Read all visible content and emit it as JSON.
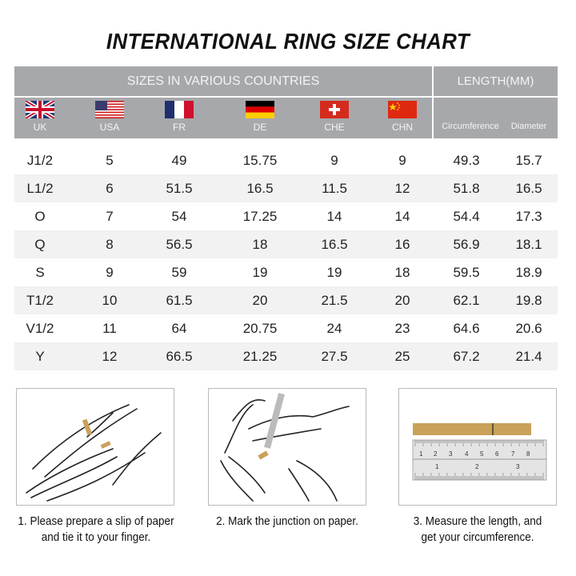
{
  "title": "INTERNATIONAL RING SIZE CHART",
  "header": {
    "sizes_label": "SIZES IN VARIOUS COUNTRIES",
    "length_label": "LENGTH(MM)",
    "countries": [
      {
        "code": "UK",
        "flag": "uk-flag"
      },
      {
        "code": "USA",
        "flag": "usa-flag"
      },
      {
        "code": "FR",
        "flag": "france-flag"
      },
      {
        "code": "DE",
        "flag": "germany-flag"
      },
      {
        "code": "CHE",
        "flag": "switzerland-flag"
      },
      {
        "code": "CHN",
        "flag": "china-flag"
      }
    ],
    "length_columns": [
      "Circumference",
      "Diameter"
    ]
  },
  "rows": [
    [
      "J1/2",
      "5",
      "49",
      "15.75",
      "9",
      "9",
      "49.3",
      "15.7"
    ],
    [
      "L1/2",
      "6",
      "51.5",
      "16.5",
      "11.5",
      "12",
      "51.8",
      "16.5"
    ],
    [
      "O",
      "7",
      "54",
      "17.25",
      "14",
      "14",
      "54.4",
      "17.3"
    ],
    [
      "Q",
      "8",
      "56.5",
      "18",
      "16.5",
      "16",
      "56.9",
      "18.1"
    ],
    [
      "S",
      "9",
      "59",
      "19",
      "19",
      "18",
      "59.5",
      "18.9"
    ],
    [
      "T1/2",
      "10",
      "61.5",
      "20",
      "21.5",
      "20",
      "62.1",
      "19.8"
    ],
    [
      "V1/2",
      "11",
      "64",
      "20.75",
      "24",
      "23",
      "64.6",
      "20.6"
    ],
    [
      "Y",
      "12",
      "66.5",
      "21.25",
      "27.5",
      "25",
      "67.2",
      "21.4"
    ]
  ],
  "steps": [
    {
      "line1": "1. Please prepare a slip of paper",
      "line2": "and tie it to your finger."
    },
    {
      "line1": "2. Mark the junction on paper.",
      "line2": ""
    },
    {
      "line1": "3. Measure the length, and",
      "line2": "get your circumference."
    }
  ],
  "ruler": {
    "cm_marks": [
      "1",
      "2",
      "3",
      "4",
      "5",
      "6",
      "7",
      "8"
    ],
    "inch_marks": [
      "1",
      "2",
      "3"
    ]
  },
  "colors": {
    "header_bg": "#a7a8ab",
    "alt_row": "#f2f2f2",
    "paper": "#c9a15a"
  }
}
